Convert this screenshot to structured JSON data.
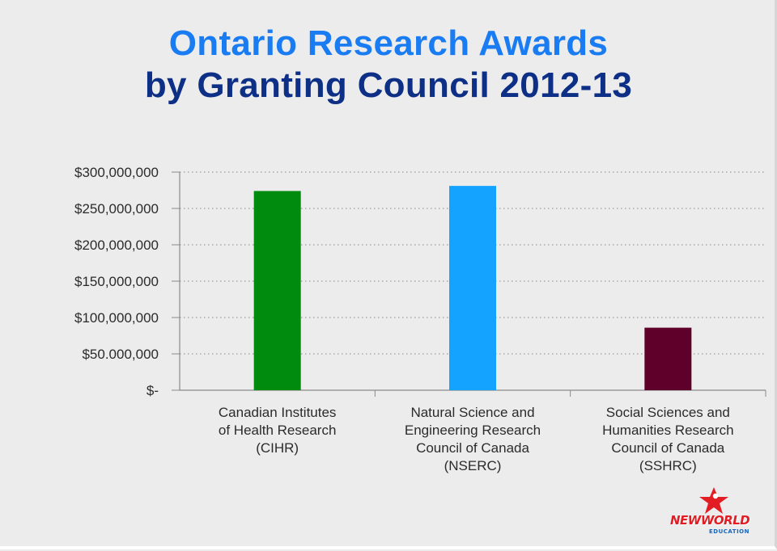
{
  "colors": {
    "title_line1": "#1a7cf2",
    "title_line2": "#0d2f86",
    "grid": "#9a9a9a",
    "axis_text": "#2b2b2b",
    "bar_colors": [
      "#008a0e",
      "#14a3ff",
      "#5e0029"
    ],
    "logo_red": "#e21d23",
    "logo_blue": "#1565c0"
  },
  "title": {
    "line1": "Ontario Research Awards",
    "line2": "by Granting Council 2012-13"
  },
  "chart_data": {
    "type": "bar",
    "title": "Ontario Research Awards by Granting Council 2012-13",
    "xlabel": "",
    "ylabel": "",
    "grid": true,
    "ylim": [
      0,
      300000000
    ],
    "yticks": [
      {
        "value": 0,
        "label": "$-"
      },
      {
        "value": 50000000,
        "label": "$50.000,000"
      },
      {
        "value": 100000000,
        "label": "$100,000,000"
      },
      {
        "value": 150000000,
        "label": "$150,000,000"
      },
      {
        "value": 200000000,
        "label": "$200,000,000"
      },
      {
        "value": 250000000,
        "label": "$250,000,000"
      },
      {
        "value": 300000000,
        "label": "$300,000,000"
      }
    ],
    "categories": [
      [
        "Canadian Institutes",
        "of Health Research",
        "(CIHR)"
      ],
      [
        "Natural Science and",
        "Engineering Research",
        "Council of Canada",
        "(NSERC)"
      ],
      [
        "Social Sciences and",
        "Humanities Research",
        "Council of Canada",
        "(SSHRC)"
      ]
    ],
    "values": [
      274000000,
      281000000,
      86000000
    ]
  },
  "logo": {
    "text_new": "NEW",
    "text_world": "WORLD",
    "text_sub": "EDUCATION",
    "icon": "star-figure-icon"
  }
}
